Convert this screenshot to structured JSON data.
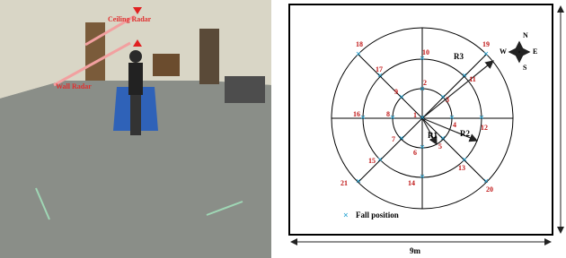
{
  "photo": {
    "labels": [
      "Ceiling Radar",
      "Wall Radar"
    ]
  },
  "diagram": {
    "nodes": [
      "1",
      "2",
      "3",
      "4",
      "5",
      "6",
      "7",
      "8",
      "9",
      "10",
      "11",
      "12",
      "13",
      "14",
      "15",
      "16",
      "17",
      "18",
      "19",
      "20",
      "21"
    ],
    "radii": [
      "R1",
      "R2",
      "R3"
    ],
    "compass": {
      "north": "N",
      "south": "S",
      "east": "E",
      "west": "W"
    },
    "legend": "Fall position",
    "width_label": "9m"
  }
}
